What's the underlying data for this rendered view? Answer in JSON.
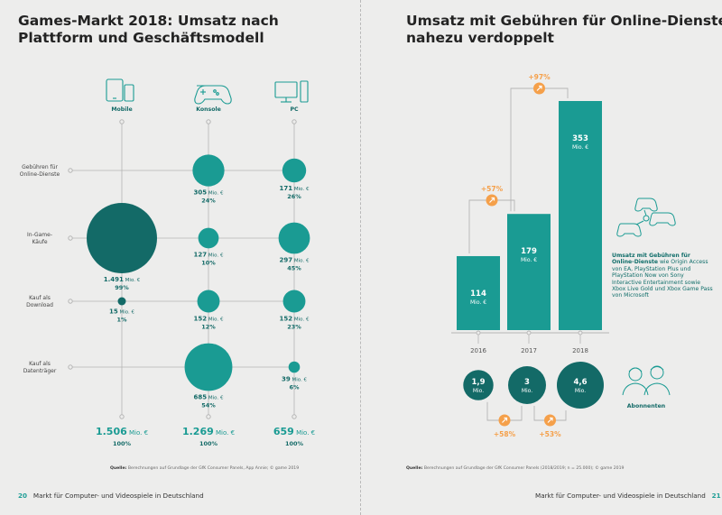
{
  "left_page": {
    "title_line1": "Games-Markt 2018: Umsatz nach",
    "title_line2": "Plattform und Geschäftsmodell",
    "source_label": "Quelle:",
    "source_text": "Berechnungen auf Grundlage der GfK Consumer Panels, App Annie; © game 2019",
    "page_number": "20",
    "footer": "Markt für Computer- und Videospiele in Deutschland"
  },
  "right_page": {
    "title_line1": "Umsatz mit Gebühren für Online-Dienste",
    "title_line2": "nahezu verdoppelt",
    "source_label": "Quelle:",
    "source_text": "Berechnungen auf Grundlage der GfK Consumer Panels (2018/2019; n = 25.000); © game 2019",
    "page_number": "21",
    "footer": "Markt für Computer- und Videospiele in Deutschland",
    "note_bold": "Umsatz mit Gebühren für Online-Dienste",
    "note_text": "wie Origin Access von EA, PlayStation Plus und PlayStation Now von Sony Interactive Entertainment sowie Xbox Live Gold und Xbox Game Pass von Microsoft",
    "subscribers_label": "Abonnenten"
  },
  "colors": {
    "teal": "#1a9b93",
    "dark_teal": "#136a67",
    "orange": "#f5a04a",
    "line": "#b5b5b5"
  },
  "chart_data": [
    {
      "type": "bubble-matrix",
      "title": "Games-Markt 2018: Umsatz nach Plattform und Geschäftsmodell",
      "unit": "Mio. €",
      "columns": [
        "Mobile",
        "Konsole",
        "PC"
      ],
      "column_icons": [
        "mobile-devices-icon",
        "gamepad-icon",
        "pc-icon"
      ],
      "rows": [
        {
          "label": [
            "Gebühren für",
            "Online-Dienste"
          ],
          "values": [
            0,
            305,
            171
          ],
          "shares": [
            "",
            "24%",
            "26%"
          ]
        },
        {
          "label": [
            "In-Game-",
            "Käufe"
          ],
          "values": [
            1491,
            127,
            297
          ],
          "shares": [
            "99%",
            "10%",
            "45%"
          ]
        },
        {
          "label": [
            "Kauf als",
            "Download"
          ],
          "values": [
            15,
            152,
            152
          ],
          "shares": [
            "1%",
            "12%",
            "23%"
          ]
        },
        {
          "label": [
            "Kauf als",
            "Datenträger"
          ],
          "values": [
            0,
            685,
            39
          ],
          "shares": [
            "",
            "54%",
            "6%"
          ]
        }
      ],
      "value_labels": [
        [
          "",
          "305",
          "171"
        ],
        [
          "1.491",
          "127",
          "297"
        ],
        [
          "15",
          "152",
          "152"
        ],
        [
          "",
          "685",
          "39"
        ]
      ],
      "totals": [
        "1.506",
        "1.269",
        "659"
      ],
      "total_shares": [
        "100%",
        "100%",
        "100%"
      ]
    },
    {
      "type": "bar",
      "title": "Umsatz mit Gebühren für Online-Dienste nahezu verdoppelt",
      "unit": "Mio. €",
      "categories": [
        "2016",
        "2017",
        "2018"
      ],
      "values": [
        114,
        179,
        353
      ],
      "ylim": [
        0,
        353
      ],
      "growth_labels": [
        "+57%",
        "+97%"
      ]
    },
    {
      "type": "bubble",
      "title": "Abonnenten",
      "unit": "Mio.",
      "categories": [
        "2016",
        "2017",
        "2018"
      ],
      "values": [
        1.9,
        3,
        4.6
      ],
      "value_labels": [
        "1,9",
        "3",
        "4,6"
      ],
      "growth_labels": [
        "+58%",
        "+53%"
      ]
    }
  ]
}
